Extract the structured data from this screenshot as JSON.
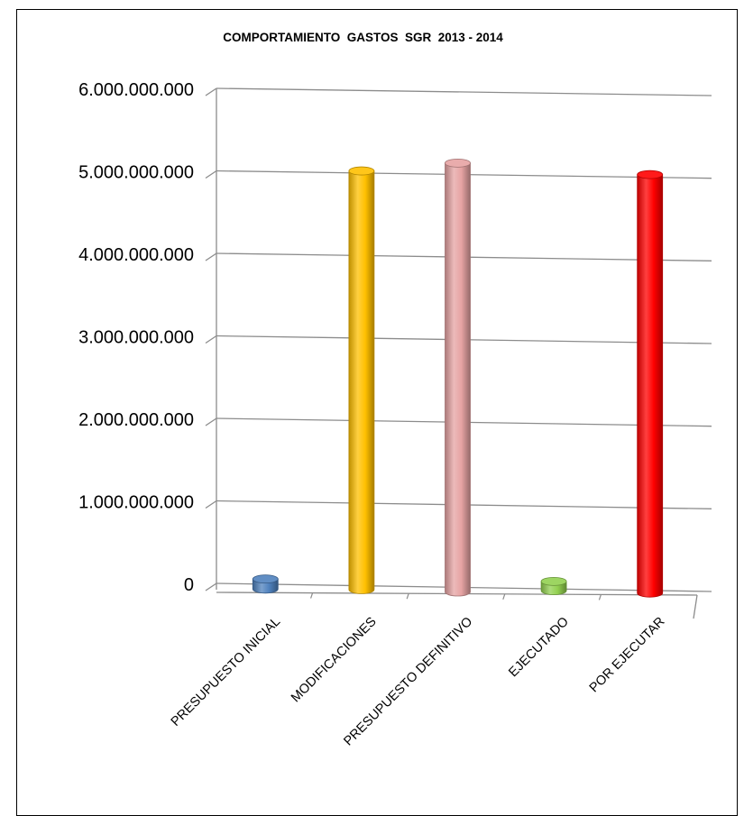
{
  "chart_data": {
    "type": "bar",
    "style": "3d-cylinder",
    "title": "COMPORTAMIENTO  GASTOS  SGR  2013 - 2014",
    "xlabel": "",
    "ylabel": "",
    "categories": [
      "PRESUPUESTO INICIAL",
      "MODIFICACIONES",
      "PRESUPUESTO DEFINITIVO",
      "EJECUTADO",
      "POR EJECUTAR"
    ],
    "values": [
      100000000,
      5050000000,
      5150000000,
      90000000,
      5020000000
    ],
    "colors": [
      "#4f81bd",
      "#ffc000",
      "#e6a3a3",
      "#92d050",
      "#ff0000"
    ],
    "ylim": [
      0,
      6000000000
    ],
    "yticks": [
      0,
      1000000000,
      2000000000,
      3000000000,
      4000000000,
      5000000000,
      6000000000
    ],
    "ytick_labels": [
      "0",
      "1.000.000.000",
      "2.000.000.000",
      "3.000.000.000",
      "4.000.000.000",
      "5.000.000.000",
      "6.000.000.000"
    ],
    "grid": true,
    "legend": "none"
  }
}
